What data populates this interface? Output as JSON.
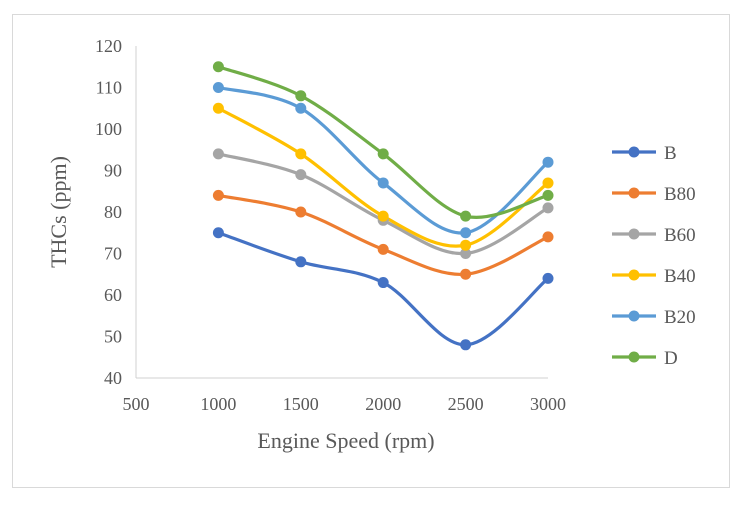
{
  "chart_data": {
    "type": "line",
    "title": "",
    "xlabel": "Engine Speed (rpm)",
    "ylabel": "THCs (ppm)",
    "xlim": [
      500,
      3000
    ],
    "ylim": [
      40,
      120
    ],
    "x_ticks": [
      "500",
      "1000",
      "1500",
      "2000",
      "2500",
      "3000"
    ],
    "y_ticks": [
      "40",
      "50",
      "60",
      "70",
      "80",
      "90",
      "100",
      "110",
      "120"
    ],
    "x": [
      1000,
      1500,
      2000,
      2500,
      3000
    ],
    "legend_position": "right",
    "grid": false,
    "smooth": true,
    "series": [
      {
        "name": "B",
        "color": "#4472C4",
        "values": [
          75,
          68,
          63,
          48,
          64
        ]
      },
      {
        "name": "B80",
        "color": "#ED7D31",
        "values": [
          84,
          80,
          71,
          65,
          74
        ]
      },
      {
        "name": "B60",
        "color": "#A5A5A5",
        "values": [
          94,
          89,
          78,
          70,
          81
        ]
      },
      {
        "name": "B40",
        "color": "#FFC000",
        "values": [
          105,
          94,
          79,
          72,
          87
        ]
      },
      {
        "name": "B20",
        "color": "#5B9BD5",
        "values": [
          110,
          105,
          87,
          75,
          92
        ]
      },
      {
        "name": "D",
        "color": "#70AD47",
        "values": [
          115,
          108,
          94,
          79,
          84
        ]
      }
    ]
  }
}
